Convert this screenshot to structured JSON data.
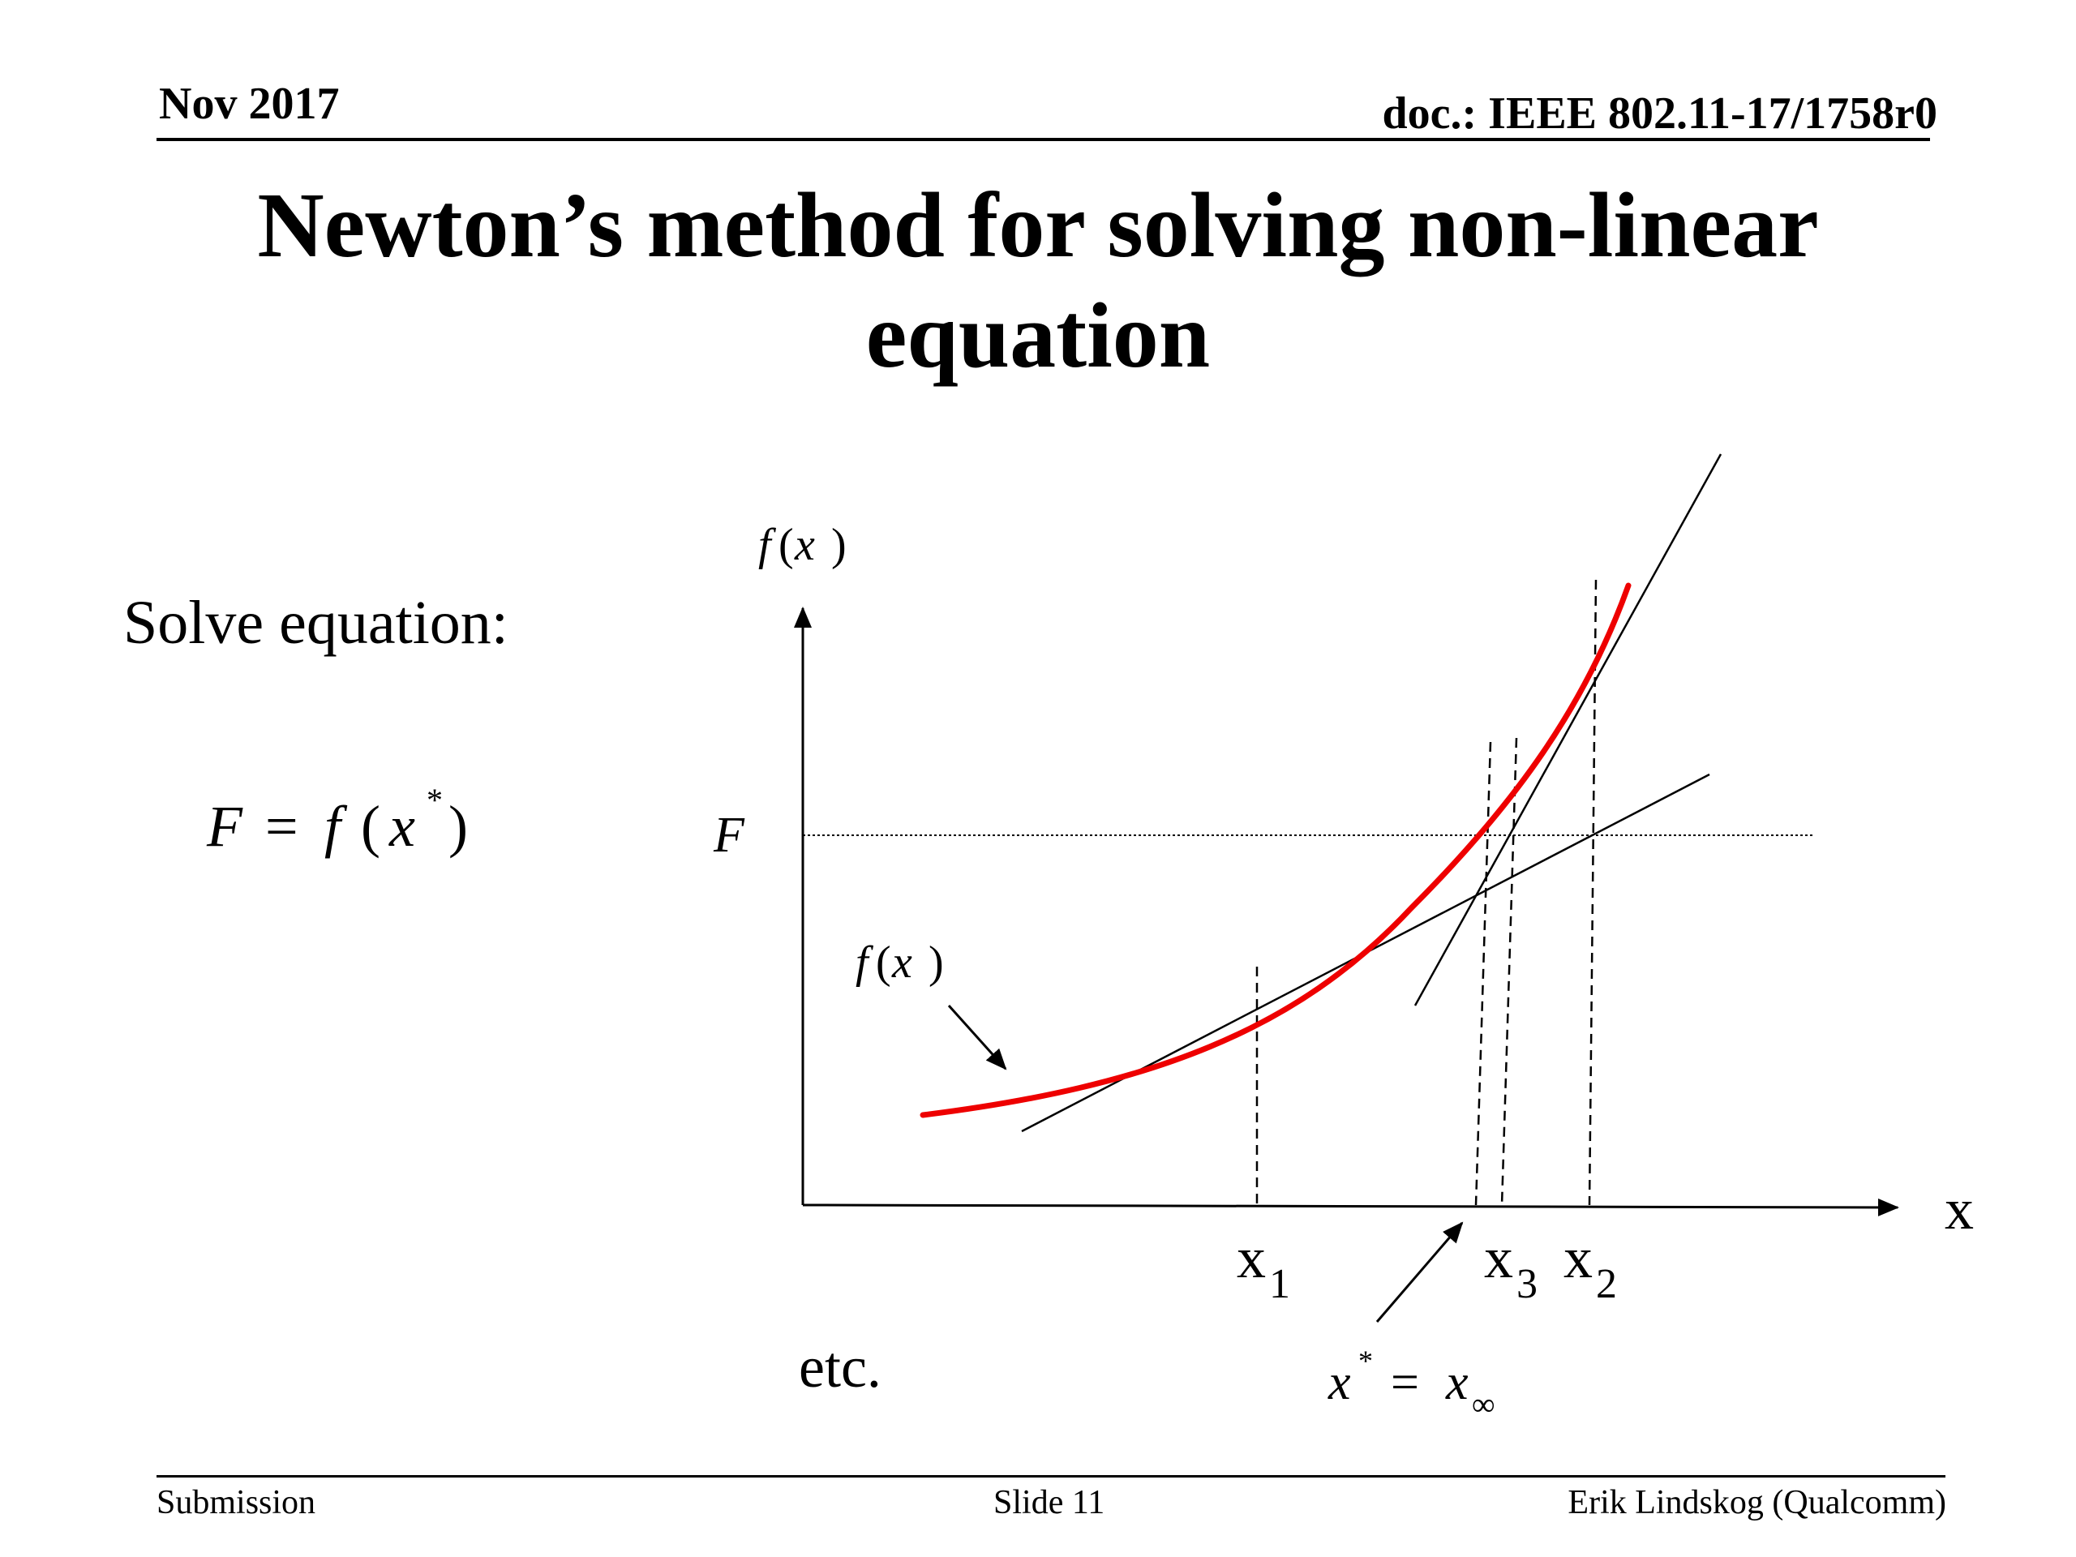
{
  "header": {
    "date": "Nov 2017",
    "doc_id": "doc.: IEEE 802.11-17/1758r0"
  },
  "slide": {
    "title_line1": "Newton’s method for solving non-linear",
    "title_line2": "equation",
    "solve_label": "Solve equation:"
  },
  "diagram": {
    "equation": {
      "lhs": "F",
      "equals": "=",
      "func": "f",
      "open_paren": "(",
      "var": "x",
      "star": "*",
      "close_paren": ")"
    },
    "y_axis_label": {
      "func": "f",
      "open_paren": "(",
      "var": "x",
      "close_paren": ")"
    },
    "curve_label": {
      "func": "f",
      "open_paren": "(",
      "var": "x",
      "close_paren": ")"
    },
    "F_level_label": "F",
    "x_axis_label": "x",
    "iterates": [
      {
        "base": "x",
        "sub": "1"
      },
      {
        "base": "x",
        "sub": "3"
      },
      {
        "base": "x",
        "sub": "2"
      }
    ],
    "root_label": {
      "var": "x",
      "star": "*",
      "equals": "=",
      "var2": "x",
      "sub": "∞"
    },
    "etc_label": "etc.",
    "curve_color": "#ee0000",
    "line_color": "#000000"
  },
  "footer": {
    "left": "Submission",
    "center": "Slide 11",
    "right": "Erik Lindskog (Qualcomm)"
  }
}
